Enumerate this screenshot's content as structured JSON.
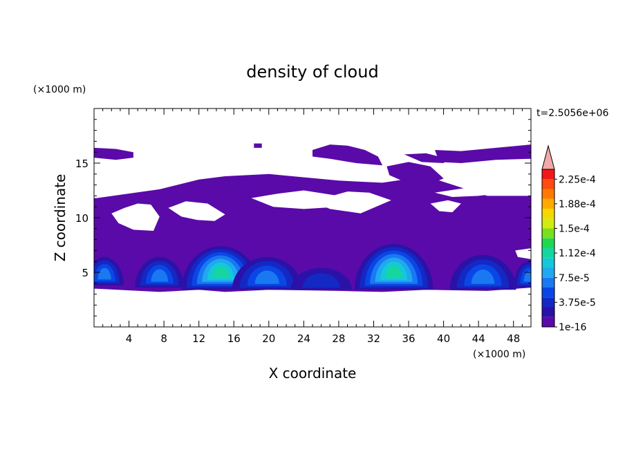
{
  "chart_data": {
    "type": "heatmap",
    "title": "density of cloud",
    "xlabel": "X coordinate",
    "ylabel": "Z coordinate",
    "x_unit": "(×1000 m)",
    "y_unit": "(×1000 m)",
    "time_label": "t=2.5056e+06",
    "xlim": [
      0,
      50
    ],
    "ylim": [
      0,
      20
    ],
    "x_ticks": [
      4,
      8,
      12,
      16,
      20,
      24,
      28,
      32,
      36,
      40,
      44,
      48
    ],
    "y_ticks": [
      5,
      10,
      15
    ],
    "x_minor_step": 1,
    "y_minor_step": 1,
    "colorbar": {
      "labels": [
        "1e-16",
        "3.75e-5",
        "7.5e-5",
        "1.12e-4",
        "1.5e-4",
        "1.88e-4",
        "2.25e-4"
      ],
      "colors": [
        "#5a0aa8",
        "#2a12a8",
        "#1428c4",
        "#0a46e6",
        "#1a78f0",
        "#20a8f0",
        "#14c8d8",
        "#16d6a0",
        "#20d850",
        "#78e020",
        "#d2ec10",
        "#f4d800",
        "#ffaa00",
        "#ff7a00",
        "#ff4a10",
        "#f01818"
      ],
      "extend_color": "#f0a8a8"
    },
    "background_color": "#5a0aa8",
    "upper_layer": [
      {
        "x": [
          0,
          0.3,
          7.5,
          12,
          15,
          20,
          28,
          33,
          38,
          45,
          50,
          50
        ],
        "z_bottom": [
          3.5,
          3.5,
          3.2,
          3.4,
          3.2,
          3.4,
          3.3,
          3.2,
          3.4,
          3.3,
          3.6,
          3.6
        ],
        "z_top": [
          11.8,
          11.8,
          12.6,
          13.5,
          13.8,
          14.0,
          13.4,
          13.2,
          13.8,
          12.0,
          12.0,
          11.8
        ]
      }
    ],
    "clear_patches": [
      {
        "x": [
          2,
          3.5,
          5,
          6.5,
          7.5,
          6.8,
          4.5,
          2.8
        ],
        "z": [
          10.4,
          10.9,
          11.3,
          11.2,
          10.1,
          8.8,
          8.9,
          9.5
        ]
      },
      {
        "x": [
          8.5,
          10.5,
          13,
          15,
          13.8,
          11.8,
          10
        ],
        "z": [
          10.9,
          11.5,
          11.3,
          10.3,
          9.7,
          9.8,
          10.1
        ]
      },
      {
        "x": [
          18,
          21,
          24,
          28,
          30,
          28,
          24,
          20.5
        ],
        "z": [
          11.8,
          12.2,
          12.5,
          12.0,
          11.8,
          11.0,
          10.8,
          11.0
        ]
      },
      {
        "x": [
          25,
          29,
          31.5,
          34,
          30.5,
          27
        ],
        "z": [
          11.5,
          12.4,
          12.3,
          11.6,
          10.4,
          10.8
        ]
      },
      {
        "x": [
          39,
          41.5,
          44,
          46,
          44,
          41
        ],
        "z": [
          12.3,
          12.6,
          12.9,
          12.2,
          12.0,
          11.9
        ]
      },
      {
        "x": [
          38.5,
          40.5,
          42,
          41,
          39.5
        ],
        "z": [
          11.3,
          11.6,
          11.3,
          10.5,
          10.6
        ]
      },
      {
        "x": [
          48.2,
          50,
          50,
          48.5
        ],
        "z": [
          7.0,
          7.2,
          6.2,
          6.4
        ]
      }
    ],
    "upper_cloud_patches": [
      {
        "x": [
          0,
          2.5,
          4.5,
          4.5,
          2.5,
          0
        ],
        "z": [
          16.4,
          16.3,
          16.0,
          15.5,
          15.3,
          15.5
        ]
      },
      {
        "x": [
          18.3,
          19.2,
          19.2,
          18.3
        ],
        "z": [
          16.8,
          16.8,
          16.4,
          16.4
        ]
      },
      {
        "x": [
          25,
          27,
          29,
          31,
          32.5,
          33,
          30,
          27,
          25
        ],
        "z": [
          16.2,
          16.7,
          16.6,
          16.2,
          15.6,
          14.8,
          15.0,
          15.4,
          15.6
        ]
      },
      {
        "x": [
          33.5,
          36,
          38.5,
          40,
          38,
          35.5,
          33.8
        ],
        "z": [
          14.7,
          15.1,
          14.7,
          13.6,
          12.9,
          13.3,
          13.9
        ]
      },
      {
        "x": [
          39,
          42,
          46,
          50,
          50,
          46,
          42,
          39.5
        ],
        "z": [
          16.2,
          16.1,
          16.4,
          16.7,
          15.4,
          15.3,
          15.0,
          15.1
        ]
      },
      {
        "x": [
          35.5,
          38,
          40.5,
          40,
          37.5
        ],
        "z": [
          15.8,
          15.9,
          15.4,
          15.0,
          15.1
        ]
      }
    ],
    "convective_cells": [
      {
        "x_center": 1.2,
        "z_base": 3.8,
        "half_width": 2.2,
        "height": 2.6,
        "max_level": 4
      },
      {
        "x_center": 7.5,
        "z_base": 3.6,
        "half_width": 2.8,
        "height": 2.8,
        "max_level": 4
      },
      {
        "x_center": 14.5,
        "z_base": 3.4,
        "half_width": 4.5,
        "height": 4.0,
        "max_level": 7
      },
      {
        "x_center": 19.8,
        "z_base": 3.4,
        "half_width": 4.0,
        "height": 3.0,
        "max_level": 4
      },
      {
        "x_center": 26.0,
        "z_base": 3.4,
        "half_width": 3.5,
        "height": 2.0,
        "max_level": 2
      },
      {
        "x_center": 34.3,
        "z_base": 3.4,
        "half_width": 4.5,
        "height": 4.2,
        "max_level": 7
      },
      {
        "x_center": 44.5,
        "z_base": 3.4,
        "half_width": 3.8,
        "height": 3.2,
        "max_level": 4
      },
      {
        "x_center": 49.8,
        "z_base": 3.6,
        "half_width": 1.8,
        "height": 2.4,
        "max_level": 4
      }
    ]
  }
}
